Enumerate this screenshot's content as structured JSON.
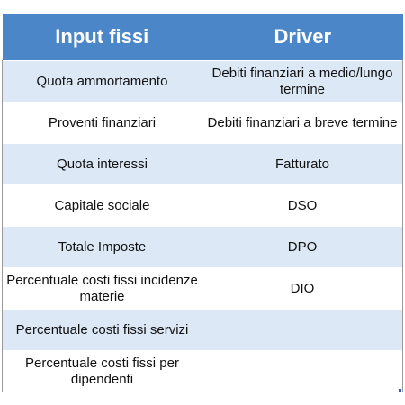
{
  "headers": {
    "col1": "Input fissi",
    "col2": "Driver"
  },
  "rows": [
    {
      "input": "Quota ammortamento",
      "driver": "Debiti finanziari a medio/lungo termine"
    },
    {
      "input": "Proventi finanziari",
      "driver": "Debiti finanziari a breve termine"
    },
    {
      "input": "Quota interessi",
      "driver": "Fatturato"
    },
    {
      "input": "Capitale sociale",
      "driver": "DSO"
    },
    {
      "input": "Totale Imposte",
      "driver": "DPO"
    },
    {
      "input": "Percentuale costi fissi incidenze materie",
      "driver": "DIO"
    },
    {
      "input": "Percentuale costi fissi servizi",
      "driver": ""
    },
    {
      "input": "Percentuale costi fissi per dipendenti",
      "driver": ""
    }
  ],
  "colors": {
    "header_bg": "#4a86c8",
    "band_bg": "#dce8f5"
  }
}
